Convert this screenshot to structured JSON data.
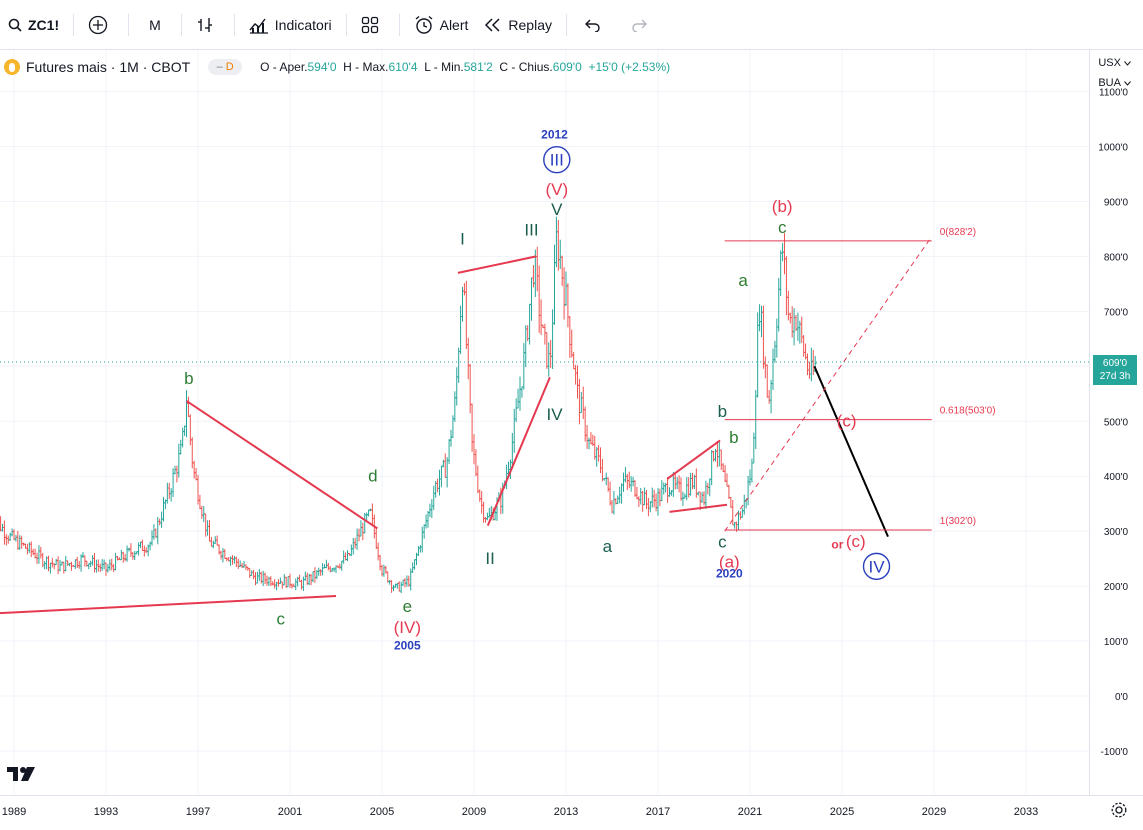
{
  "toolbar": {
    "symbol": "ZC1!",
    "interval": "M",
    "indicators_label": "Indicatori",
    "alert_label": "Alert",
    "replay_label": "Replay"
  },
  "legend": {
    "title": "Futures mais · 1M · CBOT",
    "badge": "D",
    "open_label": "O - Aper.",
    "open": "594'0",
    "high_label": "H - Max.",
    "high": "610'4",
    "low_label": "L - Min.",
    "low": "581'2",
    "close_label": "C - Chius.",
    "close": "609'0",
    "change": "+15'0 (+2.53%)"
  },
  "right_panel": {
    "currency": "USX",
    "unit": "BUA"
  },
  "price_tag": {
    "price": "609'0",
    "countdown": "27d 3h"
  },
  "colors": {
    "up": "#26a69a",
    "down": "#ef5350",
    "red": "#e53950",
    "green": "#2e7d32",
    "blue": "#2a3fbd",
    "teal": "#1b5e50",
    "grid": "#f0f3fa"
  },
  "chart_data": {
    "type": "line",
    "y_ticks": [
      "1100'0",
      "1000'0",
      "900'0",
      "800'0",
      "700'0",
      "600'0",
      "500'0",
      "400'0",
      "300'0",
      "200'0",
      "100'0",
      "0'0",
      "-100'0"
    ],
    "x_ticks": [
      "1989",
      "1993",
      "1997",
      "2001",
      "2005",
      "2009",
      "2013",
      "2017",
      "2021",
      "2025",
      "2029",
      "2033"
    ],
    "ylim": [
      -150,
      1100
    ],
    "xlim": [
      1989,
      2036
    ],
    "price_series": [
      [
        1988,
        330
      ],
      [
        1988.8,
        290
      ],
      [
        1989.5,
        270
      ],
      [
        1990.2,
        250
      ],
      [
        1991,
        235
      ],
      [
        1992,
        250
      ],
      [
        1993,
        230
      ],
      [
        1994,
        260
      ],
      [
        1995,
        280
      ],
      [
        1995.8,
        380
      ],
      [
        1996.3,
        450
      ],
      [
        1996.5,
        540
      ],
      [
        1996.8,
        410
      ],
      [
        1997.5,
        280
      ],
      [
        1998.5,
        250
      ],
      [
        1999.5,
        215
      ],
      [
        2000.5,
        210
      ],
      [
        2001.5,
        205
      ],
      [
        2002.5,
        230
      ],
      [
        2003.5,
        250
      ],
      [
        2004.3,
        320
      ],
      [
        2004.5,
        330
      ],
      [
        2005,
        230
      ],
      [
        2005.6,
        195
      ],
      [
        2006.2,
        210
      ],
      [
        2006.8,
        300
      ],
      [
        2007.3,
        380
      ],
      [
        2007.8,
        420
      ],
      [
        2008.2,
        540
      ],
      [
        2008.5,
        770
      ],
      [
        2008.9,
        460
      ],
      [
        2009.3,
        350
      ],
      [
        2009.6,
        320
      ],
      [
        2010.2,
        360
      ],
      [
        2010.7,
        470
      ],
      [
        2011.2,
        620
      ],
      [
        2011.6,
        790
      ],
      [
        2012,
        650
      ],
      [
        2012.3,
        600
      ],
      [
        2012.6,
        840
      ],
      [
        2013,
        720
      ],
      [
        2013.5,
        550
      ],
      [
        2014,
        460
      ],
      [
        2014.5,
        420
      ],
      [
        2015,
        350
      ],
      [
        2015.5,
        390
      ],
      [
        2016,
        380
      ],
      [
        2016.5,
        350
      ],
      [
        2017,
        360
      ],
      [
        2017.5,
        385
      ],
      [
        2018,
        370
      ],
      [
        2018.5,
        390
      ],
      [
        2019,
        360
      ],
      [
        2019.5,
        460
      ],
      [
        2019.9,
        385
      ],
      [
        2020.3,
        310
      ],
      [
        2020.7,
        340
      ],
      [
        2021.1,
        420
      ],
      [
        2021.4,
        720
      ],
      [
        2021.8,
        530
      ],
      [
        2022.1,
        660
      ],
      [
        2022.4,
        820
      ],
      [
        2022.7,
        680
      ],
      [
        2023,
        690
      ],
      [
        2023.5,
        600
      ],
      [
        2023.7,
        580
      ],
      [
        2023.9,
        610
      ]
    ],
    "labels": [
      {
        "text": "b",
        "color": "green",
        "x": 1996.6,
        "y": 568
      },
      {
        "text": "c",
        "color": "green",
        "x": 2000.6,
        "y": 130
      },
      {
        "text": "d",
        "color": "green",
        "x": 2004.6,
        "y": 390
      },
      {
        "text": "e",
        "color": "green",
        "x": 2006.1,
        "y": 153
      },
      {
        "text": "(IV)",
        "color": "red",
        "x": 2006.1,
        "y": 115
      },
      {
        "text": "2005",
        "color": "blue",
        "x": 2006.1,
        "y": 85
      },
      {
        "text": "I",
        "color": "teal",
        "x": 2008.5,
        "y": 822
      },
      {
        "text": "II",
        "color": "teal",
        "x": 2009.7,
        "y": 240
      },
      {
        "text": "III",
        "color": "teal",
        "x": 2011.5,
        "y": 838
      },
      {
        "text": "IV",
        "color": "teal",
        "x": 2012.5,
        "y": 502
      },
      {
        "text": "V",
        "color": "teal",
        "x": 2012.6,
        "y": 875
      },
      {
        "text": "(V)",
        "color": "red",
        "x": 2012.6,
        "y": 912
      },
      {
        "text": "2012",
        "color": "blue",
        "x": 2012.5,
        "y": 1015
      },
      {
        "text": "a",
        "color": "teal",
        "x": 2014.8,
        "y": 262
      },
      {
        "text": "b",
        "color": "teal",
        "x": 2019.8,
        "y": 508
      },
      {
        "text": "c",
        "color": "teal",
        "x": 2019.8,
        "y": 270
      },
      {
        "text": "(a)",
        "color": "red",
        "x": 2020.1,
        "y": 234
      },
      {
        "text": "2020",
        "color": "blue",
        "x": 2020.1,
        "y": 216
      },
      {
        "text": "a",
        "color": "green",
        "x": 2020.7,
        "y": 746
      },
      {
        "text": "b",
        "color": "green",
        "x": 2020.3,
        "y": 460
      },
      {
        "text": "c",
        "color": "green",
        "x": 2022.4,
        "y": 843
      },
      {
        "text": "(b)",
        "color": "red",
        "x": 2022.4,
        "y": 881
      },
      {
        "text": "(c)",
        "color": "red",
        "x": 2025.2,
        "y": 490
      },
      {
        "text": "or",
        "color": "red",
        "x": 2024.8,
        "y": 268
      },
      {
        "text": "(c)",
        "color": "red",
        "x": 2025.6,
        "y": 271
      },
      {
        "text": "III",
        "color": "blue",
        "x": 2012.6,
        "y": 965,
        "circled": true
      },
      {
        "text": "IV",
        "color": "blue",
        "x": 2026.5,
        "y": 225,
        "circled": true
      }
    ],
    "fib_levels": [
      {
        "label": "0(828'2)",
        "price": 828.2
      },
      {
        "label": "0.618(503'0)",
        "price": 503
      },
      {
        "label": "1(302'0)",
        "price": 302
      }
    ],
    "trendlines": [
      {
        "color": "red",
        "from": [
          1988,
          150
        ],
        "to": [
          2003,
          182
        ]
      },
      {
        "color": "red",
        "from": [
          1996.5,
          537
        ],
        "to": [
          2004.8,
          305
        ]
      },
      {
        "color": "red",
        "from": [
          2008.3,
          770
        ],
        "to": [
          2011.7,
          800
        ]
      },
      {
        "color": "red",
        "from": [
          2009.6,
          310
        ],
        "to": [
          2012.3,
          580
        ]
      },
      {
        "color": "red",
        "from": [
          2017.4,
          395
        ],
        "to": [
          2019.7,
          465
        ]
      },
      {
        "color": "red",
        "from": [
          2017.5,
          335
        ],
        "to": [
          2020.0,
          348
        ]
      },
      {
        "color": "black",
        "from": [
          2023.8,
          600
        ],
        "to": [
          2027.0,
          290
        ]
      }
    ],
    "dashed_trendline": {
      "color": "red",
      "from": [
        2019.9,
        300
      ],
      "to": [
        2028.8,
        830
      ]
    }
  }
}
